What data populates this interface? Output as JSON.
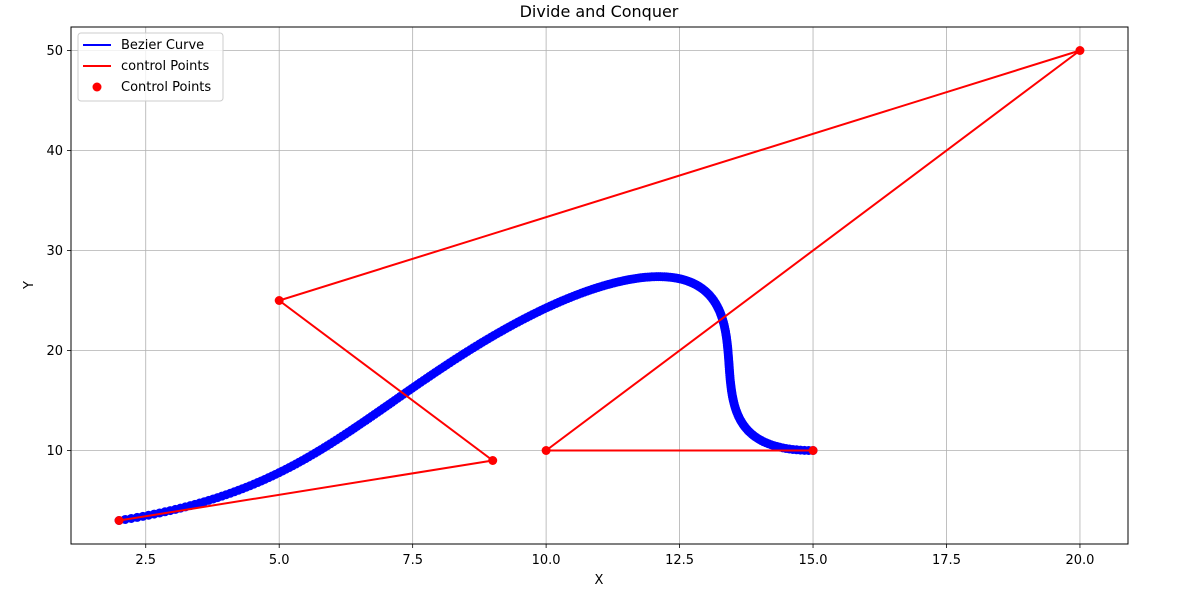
{
  "chart_data": {
    "type": "line",
    "title": "Divide and Conquer",
    "xlabel": "X",
    "ylabel": "Y",
    "xlim": [
      1.1,
      20.9
    ],
    "ylim": [
      0.65,
      52.35
    ],
    "xticks": [
      "2.5",
      "5.0",
      "7.5",
      "10.0",
      "12.5",
      "15.0",
      "17.5",
      "20.0"
    ],
    "xtick_values": [
      2.5,
      5.0,
      7.5,
      10.0,
      12.5,
      15.0,
      17.5,
      20.0
    ],
    "yticks": [
      "10",
      "20",
      "30",
      "40",
      "50"
    ],
    "ytick_values": [
      10,
      20,
      30,
      40,
      50
    ],
    "grid": true,
    "legend_position": "top-left",
    "control_points": [
      {
        "x": 2,
        "y": 3
      },
      {
        "x": 9,
        "y": 9
      },
      {
        "x": 5,
        "y": 25
      },
      {
        "x": 20,
        "y": 50
      },
      {
        "x": 10,
        "y": 10
      },
      {
        "x": 15,
        "y": 10
      }
    ],
    "series": [
      {
        "name": "Bezier Curve",
        "kind": "curve",
        "color": "#0000ff"
      },
      {
        "name": "control Points",
        "kind": "polyline",
        "color": "#ff0000"
      },
      {
        "name": "Control Points",
        "kind": "scatter",
        "color": "#ff0000"
      }
    ],
    "curve_points": 300
  }
}
